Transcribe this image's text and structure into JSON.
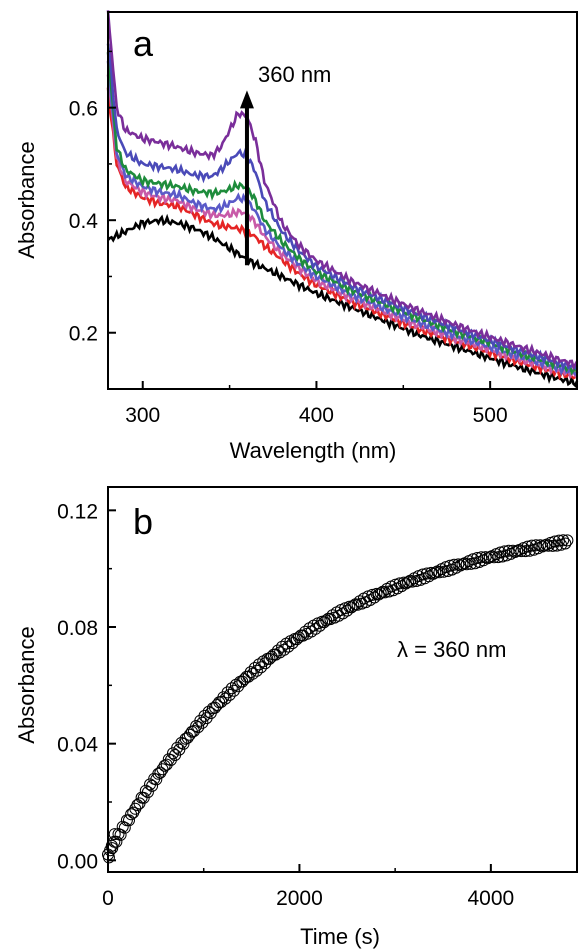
{
  "chart_data": [
    {
      "panel": "a",
      "type": "line",
      "xlabel": "Wavelength (nm)",
      "ylabel": "Absorbance",
      "xlim": [
        280,
        550
      ],
      "ylim": [
        0.1,
        0.77
      ],
      "xticks": [
        300,
        400,
        500
      ],
      "xtick_labels": [
        "300",
        "400",
        "500"
      ],
      "yticks": [
        0.2,
        0.4,
        0.6
      ],
      "ytick_labels": [
        "0.2",
        "0.4",
        "0.6"
      ],
      "annotation": {
        "text": "360 nm",
        "arrow_x": 360,
        "arrow_from": 0.32,
        "arrow_to": 0.62
      },
      "x": [
        280,
        285,
        290,
        300,
        310,
        320,
        330,
        340,
        345,
        350,
        355,
        360,
        365,
        370,
        380,
        390,
        400,
        420,
        440,
        460,
        480,
        500,
        520,
        540,
        550
      ],
      "series": [
        {
          "color": "#000000",
          "values": [
            0.365,
            0.372,
            0.38,
            0.395,
            0.4,
            0.395,
            0.385,
            0.37,
            0.36,
            0.35,
            0.34,
            0.33,
            0.322,
            0.315,
            0.3,
            0.285,
            0.27,
            0.245,
            0.22,
            0.195,
            0.175,
            0.155,
            0.135,
            0.118,
            0.11
          ]
        },
        {
          "color": "#e52525",
          "values": [
            0.63,
            0.5,
            0.46,
            0.44,
            0.43,
            0.425,
            0.41,
            0.395,
            0.39,
            0.388,
            0.385,
            0.38,
            0.37,
            0.355,
            0.33,
            0.305,
            0.285,
            0.255,
            0.23,
            0.205,
            0.185,
            0.165,
            0.145,
            0.128,
            0.12
          ]
        },
        {
          "color": "#c85aa8",
          "values": [
            0.66,
            0.51,
            0.47,
            0.45,
            0.44,
            0.435,
            0.42,
            0.41,
            0.408,
            0.41,
            0.415,
            0.412,
            0.395,
            0.372,
            0.34,
            0.315,
            0.292,
            0.262,
            0.236,
            0.211,
            0.19,
            0.17,
            0.15,
            0.133,
            0.125
          ]
        },
        {
          "color": "#5a5ac8",
          "values": [
            0.68,
            0.52,
            0.48,
            0.46,
            0.45,
            0.445,
            0.43,
            0.42,
            0.422,
            0.43,
            0.44,
            0.435,
            0.415,
            0.385,
            0.35,
            0.322,
            0.3,
            0.268,
            0.242,
            0.217,
            0.195,
            0.175,
            0.155,
            0.137,
            0.128
          ]
        },
        {
          "color": "#1e8c3c",
          "values": [
            0.7,
            0.53,
            0.49,
            0.47,
            0.465,
            0.46,
            0.452,
            0.448,
            0.45,
            0.455,
            0.462,
            0.458,
            0.435,
            0.4,
            0.362,
            0.332,
            0.308,
            0.276,
            0.25,
            0.225,
            0.202,
            0.182,
            0.16,
            0.142,
            0.132
          ]
        },
        {
          "color": "#4a4ab8",
          "values": [
            0.72,
            0.56,
            0.52,
            0.5,
            0.495,
            0.49,
            0.48,
            0.478,
            0.49,
            0.505,
            0.52,
            0.515,
            0.485,
            0.435,
            0.38,
            0.345,
            0.318,
            0.283,
            0.256,
            0.231,
            0.208,
            0.186,
            0.165,
            0.146,
            0.137
          ]
        },
        {
          "color": "#7a2e9a",
          "values": [
            0.77,
            0.6,
            0.56,
            0.545,
            0.538,
            0.53,
            0.52,
            0.515,
            0.53,
            0.56,
            0.59,
            0.585,
            0.54,
            0.47,
            0.395,
            0.355,
            0.328,
            0.292,
            0.264,
            0.238,
            0.214,
            0.192,
            0.172,
            0.152,
            0.143
          ]
        }
      ]
    },
    {
      "panel": "b",
      "type": "scatter",
      "xlabel": "Time (s)",
      "ylabel": "Absorbance",
      "xlim": [
        0,
        4900
      ],
      "ylim": [
        -0.004,
        0.128
      ],
      "xticks": [
        0,
        2000,
        4000
      ],
      "xtick_labels": [
        "0",
        "2000",
        "4000"
      ],
      "yticks": [
        0.0,
        0.04,
        0.08,
        0.12
      ],
      "ytick_labels": [
        "0.00",
        "0.04",
        "0.08",
        "0.12"
      ],
      "annotation": {
        "text": "λ = 360 nm"
      },
      "fit": {
        "model": "a*(1-exp(-t/tau))+c",
        "a": 0.118,
        "tau": 2000,
        "c": 0.002,
        "t_start": 0,
        "t_end": 4800,
        "n_points": 220
      }
    }
  ]
}
